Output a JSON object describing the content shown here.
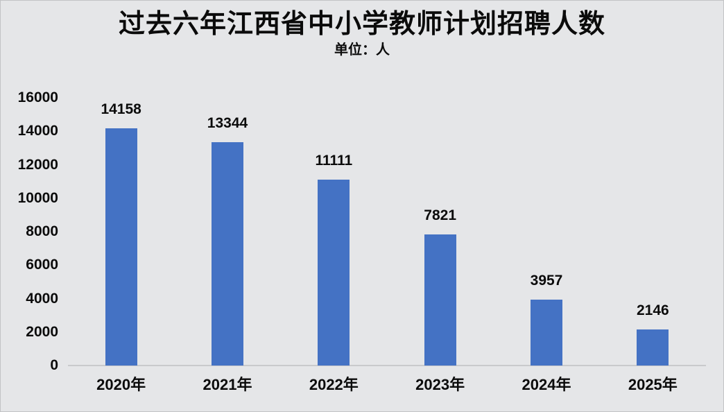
{
  "page": {
    "background_color": "#e5e6e8",
    "text_color": "#0b0b0b"
  },
  "chart_data": {
    "type": "bar",
    "title": "过去六年江西省中小学教师计划招聘人数",
    "subtitle": "单位：人",
    "categories": [
      "2020年",
      "2021年",
      "2022年",
      "2023年",
      "2024年",
      "2025年"
    ],
    "values": [
      14158,
      13344,
      11111,
      7821,
      3957,
      2146
    ],
    "data_labels": [
      14158,
      13344,
      11111,
      7821,
      3957,
      2146
    ],
    "xlabel": "",
    "ylabel": "",
    "ylim": [
      0,
      16000
    ],
    "ytick_step": 2000,
    "yticks": [
      0,
      2000,
      4000,
      6000,
      8000,
      10000,
      12000,
      14000,
      16000
    ],
    "grid": false,
    "legend": "none",
    "bar_color": "#4472c4",
    "axis_line_color": "#c9cacc"
  }
}
